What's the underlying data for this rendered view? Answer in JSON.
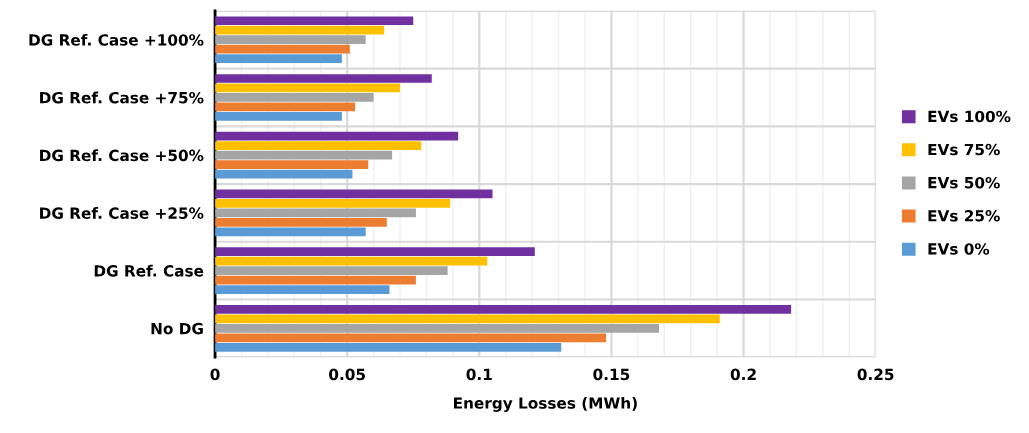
{
  "chart_data": {
    "type": "bar",
    "orientation": "horizontal",
    "xlabel": "Energy Losses (MWh)",
    "categories": [
      "DG Ref. Case +100%",
      "DG Ref. Case +75%",
      "DG Ref. Case +50%",
      "DG Ref. Case +25%",
      "DG Ref. Case",
      "No DG"
    ],
    "series": [
      {
        "name": "EVs 100%",
        "color": "#7030a0",
        "values": [
          0.075,
          0.082,
          0.092,
          0.105,
          0.121,
          0.218
        ]
      },
      {
        "name": "EVs 75%",
        "color": "#ffc000",
        "values": [
          0.064,
          0.07,
          0.078,
          0.089,
          0.103,
          0.191
        ]
      },
      {
        "name": "EVs 50%",
        "color": "#a5a5a5",
        "values": [
          0.057,
          0.06,
          0.067,
          0.076,
          0.088,
          0.168
        ]
      },
      {
        "name": "EVs 25%",
        "color": "#ed7d31",
        "values": [
          0.051,
          0.053,
          0.058,
          0.065,
          0.076,
          0.148
        ]
      },
      {
        "name": "EVs 0%",
        "color": "#5b9bd5",
        "values": [
          0.048,
          0.048,
          0.052,
          0.057,
          0.066,
          0.131
        ]
      }
    ],
    "xlim": [
      0,
      0.25
    ],
    "xticks": [
      0,
      {
        "value": 0.01,
        "label": null
      },
      {
        "value": 0.02,
        "label": null
      },
      {
        "value": 0.03,
        "label": null
      },
      {
        "value": 0.04,
        "label": null
      },
      0.05,
      {
        "value": 0.06,
        "label": null
      },
      {
        "value": 0.07,
        "label": null
      },
      {
        "value": 0.08,
        "label": null
      },
      {
        "value": 0.09,
        "label": null
      },
      0.1,
      {
        "value": 0.11,
        "label": null
      },
      {
        "value": 0.12,
        "label": null
      },
      {
        "value": 0.13,
        "label": null
      },
      {
        "value": 0.14,
        "label": null
      },
      0.15,
      {
        "value": 0.16,
        "label": null
      },
      {
        "value": 0.17,
        "label": null
      },
      {
        "value": 0.18,
        "label": null
      },
      {
        "value": 0.19,
        "label": null
      },
      0.2,
      {
        "value": 0.21,
        "label": null
      },
      {
        "value": 0.22,
        "label": null
      },
      {
        "value": 0.23,
        "label": null
      },
      {
        "value": 0.24,
        "label": null
      },
      0.25
    ],
    "grid": true,
    "legend": "right"
  }
}
